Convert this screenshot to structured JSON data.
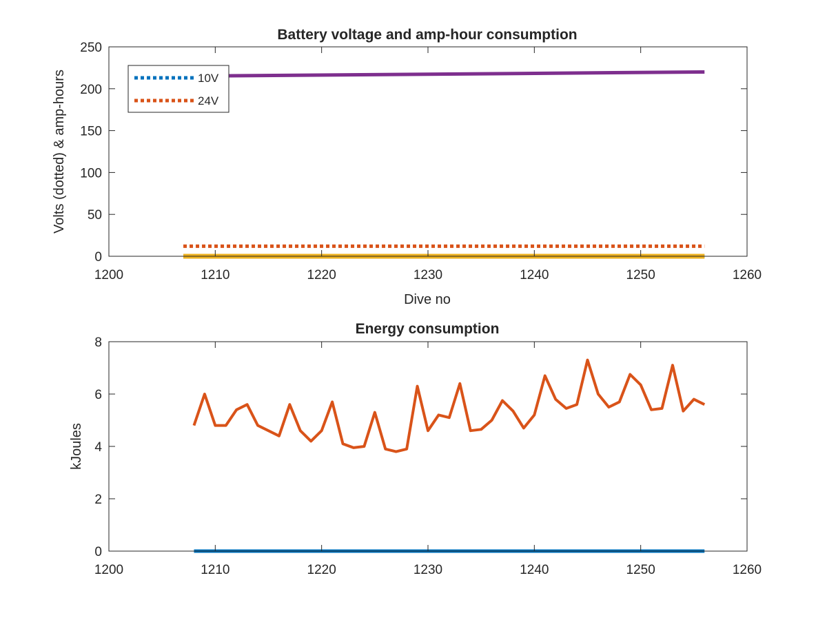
{
  "chart_data": [
    {
      "type": "line",
      "title": "Battery voltage and amp-hour consumption",
      "xlabel": "Dive no",
      "ylabel": "Volts (dotted) & amp-hours",
      "xlim": [
        1200,
        1260
      ],
      "ylim": [
        0,
        250
      ],
      "xticks": [
        1200,
        1210,
        1220,
        1230,
        1240,
        1250,
        1260
      ],
      "yticks": [
        0,
        50,
        100,
        150,
        200,
        250
      ],
      "grid": false,
      "legend": {
        "placement": "top-left",
        "entries": [
          "10V",
          "24V"
        ]
      },
      "series": [
        {
          "name": "10V",
          "style": "dotted",
          "color": "#0072BD",
          "x": [
            1207,
            1256
          ],
          "y": [
            0,
            0
          ]
        },
        {
          "name": "24V",
          "style": "dotted",
          "color": "#D95319",
          "x": [
            1207,
            1256
          ],
          "y": [
            12,
            12
          ]
        },
        {
          "style": "solid",
          "color": "#EDB120",
          "x": [
            1207,
            1256
          ],
          "y": [
            0,
            0
          ]
        },
        {
          "style": "solid",
          "color": "#7E2F8E",
          "x": [
            1207,
            1256
          ],
          "y": [
            215,
            220
          ]
        }
      ]
    },
    {
      "type": "line",
      "title": "Energy consumption",
      "xlabel": "",
      "ylabel": "kJoules",
      "xlim": [
        1200,
        1260
      ],
      "ylim": [
        0,
        8
      ],
      "xticks": [
        1200,
        1210,
        1220,
        1230,
        1240,
        1250,
        1260
      ],
      "yticks": [
        0,
        2,
        4,
        6,
        8
      ],
      "grid": false,
      "series": [
        {
          "style": "solid",
          "color": "#0072BD",
          "x": [
            1208,
            1256
          ],
          "y": [
            0,
            0
          ]
        },
        {
          "style": "solid",
          "color": "#D95319",
          "x": [
            1208,
            1209,
            1210,
            1211,
            1212,
            1213,
            1214,
            1215,
            1216,
            1217,
            1218,
            1219,
            1220,
            1221,
            1222,
            1223,
            1224,
            1225,
            1226,
            1227,
            1228,
            1229,
            1230,
            1231,
            1232,
            1233,
            1234,
            1235,
            1236,
            1237,
            1238,
            1239,
            1240,
            1241,
            1242,
            1243,
            1244,
            1245,
            1246,
            1247,
            1248,
            1249,
            1250,
            1251,
            1252,
            1253,
            1254,
            1255,
            1256
          ],
          "y": [
            4.8,
            6.0,
            4.8,
            4.8,
            5.4,
            5.6,
            4.8,
            4.6,
            4.4,
            5.6,
            4.6,
            4.2,
            4.6,
            5.7,
            4.1,
            3.95,
            4.0,
            5.3,
            3.9,
            3.8,
            3.9,
            6.3,
            4.6,
            5.2,
            5.1,
            6.4,
            4.6,
            4.65,
            5.0,
            5.75,
            5.35,
            4.7,
            5.2,
            6.7,
            5.8,
            5.45,
            5.6,
            7.3,
            6.0,
            5.5,
            5.7,
            6.75,
            6.35,
            5.4,
            5.45,
            7.1,
            5.35,
            5.8,
            5.6
          ]
        }
      ]
    }
  ]
}
